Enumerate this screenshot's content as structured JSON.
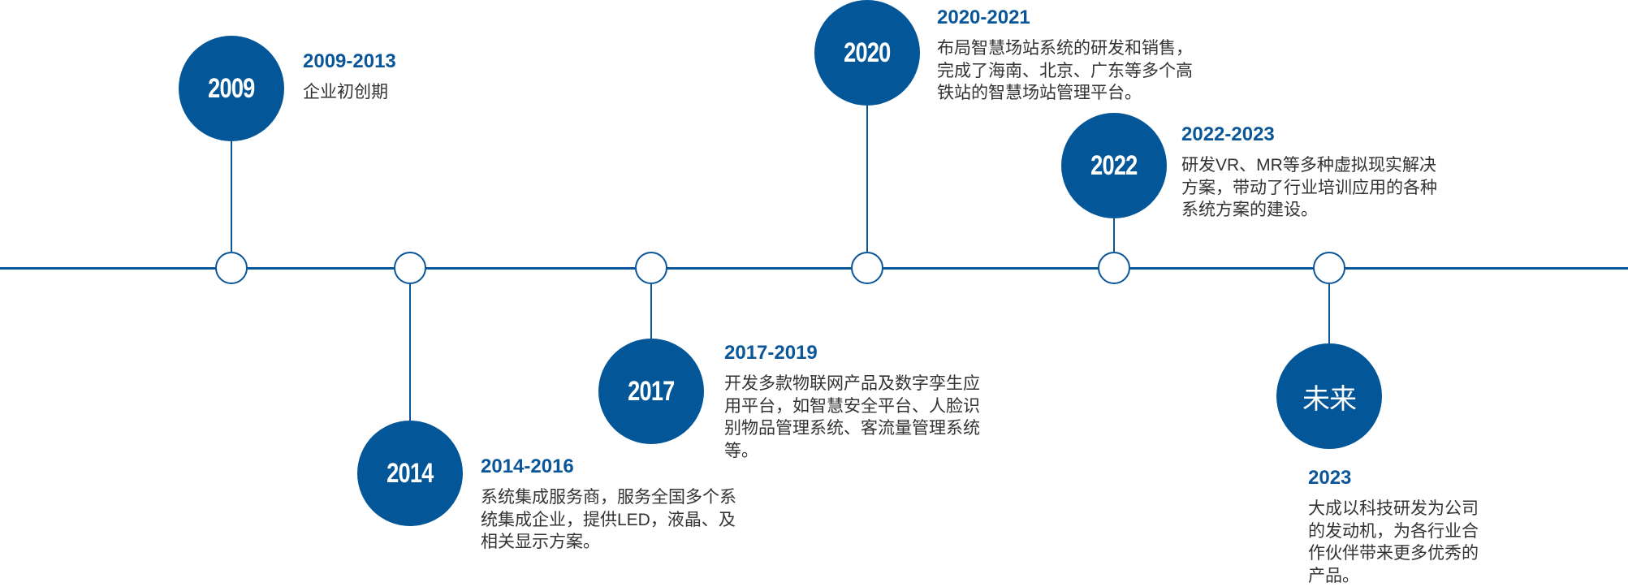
{
  "colors": {
    "accent": "#035698",
    "text": "#333333"
  },
  "milestones": [
    {
      "badge": "2009",
      "title": "2009-2013",
      "lines": [
        "企业初创期"
      ]
    },
    {
      "badge": "2014",
      "title": "2014-2016",
      "lines": [
        "系统集成服务商，服务全国多个系",
        "统集成企业，提供LED，液晶、及",
        "相关显示方案。"
      ]
    },
    {
      "badge": "2017",
      "title": "2017-2019",
      "lines": [
        "开发多款物联网产品及数字孪生应",
        "用平台，如智慧安全平台、人脸识",
        "别物品管理系统、客流量管理系统",
        "等。"
      ]
    },
    {
      "badge": "2020",
      "title": "2020-2021",
      "lines": [
        "布局智慧场站系统的研发和销售，",
        "完成了海南、北京、广东等多个高",
        "铁站的智慧场站管理平台。"
      ]
    },
    {
      "badge": "2022",
      "title": "2022-2023",
      "lines": [
        "研发VR、MR等多种虚拟现实解决",
        "方案，带动了行业培训应用的各种",
        "系统方案的建设。"
      ]
    },
    {
      "badge": "未来",
      "title": "2023",
      "lines": [
        "大成以科技研发为公司",
        "的发动机，为各行业合",
        "作伙伴带来更多优秀的",
        "产品。"
      ]
    }
  ]
}
